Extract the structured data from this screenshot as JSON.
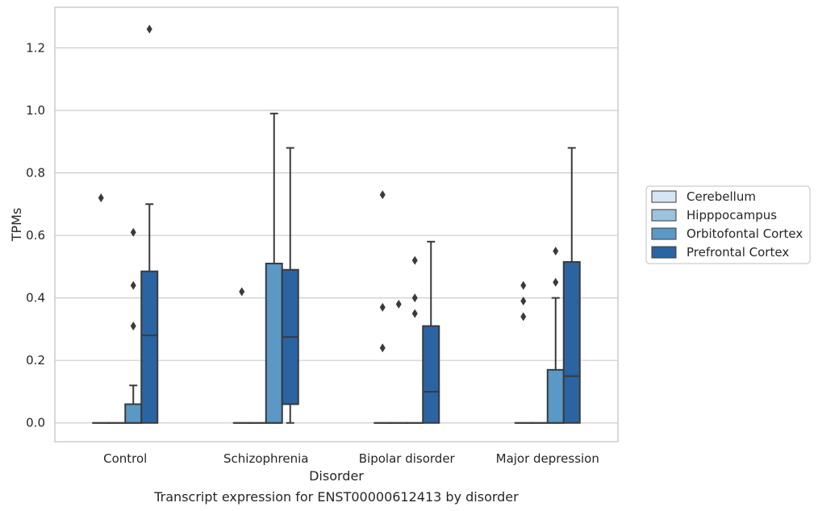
{
  "chart_data": {
    "type": "boxplot",
    "caption": "Transcript expression for ENST00000612413 by disorder",
    "xlabel": "Disorder",
    "ylabel": "TPMs",
    "ylim": [
      -0.06,
      1.33
    ],
    "yticks": [
      "0.0",
      "0.2",
      "0.4",
      "0.6",
      "0.8",
      "1.0",
      "1.2"
    ],
    "grid": "horizontal",
    "legend_position": "right",
    "categories": [
      "Control",
      "Schizophrenia",
      "Bipolar disorder",
      "Major depression"
    ],
    "series": [
      {
        "name": "Cerebellum",
        "color": "#d4e4f2",
        "boxes": [
          {
            "min": 0,
            "q1": 0,
            "median": 0,
            "q3": 0,
            "max": 0,
            "outliers": [
              0.72
            ]
          },
          {
            "min": 0,
            "q1": 0,
            "median": 0,
            "q3": 0,
            "max": 0,
            "outliers": [
              0.42
            ]
          },
          {
            "min": 0,
            "q1": 0,
            "median": 0,
            "q3": 0,
            "max": 0,
            "outliers": [
              0.73,
              0.37,
              0.24
            ]
          },
          {
            "min": 0,
            "q1": 0,
            "median": 0,
            "q3": 0,
            "max": 0,
            "outliers": [
              0.44,
              0.39,
              0.34
            ]
          }
        ]
      },
      {
        "name": "Hipppocampus",
        "color": "#9bc3de",
        "boxes": [
          {
            "min": 0,
            "q1": 0,
            "median": 0,
            "q3": 0,
            "max": 0,
            "outliers": []
          },
          {
            "min": 0,
            "q1": 0,
            "median": 0,
            "q3": 0,
            "max": 0,
            "outliers": []
          },
          {
            "min": 0,
            "q1": 0,
            "median": 0,
            "q3": 0,
            "max": 0,
            "outliers": [
              0.38
            ]
          },
          {
            "min": 0,
            "q1": 0,
            "median": 0,
            "q3": 0,
            "max": 0,
            "outliers": []
          }
        ]
      },
      {
        "name": "Orbitofontal Cortex",
        "color": "#5a98c6",
        "boxes": [
          {
            "min": 0,
            "q1": 0,
            "median": 0,
            "q3": 0.06,
            "max": 0.12,
            "outliers": [
              0.61,
              0.44,
              0.31
            ]
          },
          {
            "min": 0,
            "q1": 0,
            "median": 0,
            "q3": 0.51,
            "max": 0.99,
            "outliers": []
          },
          {
            "min": 0,
            "q1": 0,
            "median": 0,
            "q3": 0,
            "max": 0,
            "outliers": [
              0.52,
              0.4,
              0.35
            ]
          },
          {
            "min": 0,
            "q1": 0,
            "median": 0,
            "q3": 0.17,
            "max": 0.4,
            "outliers": [
              0.55,
              0.45
            ]
          }
        ]
      },
      {
        "name": "Prefrontal Cortex",
        "color": "#2a64a2",
        "boxes": [
          {
            "min": 0,
            "q1": 0,
            "median": 0.28,
            "q3": 0.485,
            "max": 0.7,
            "outliers": [
              1.26
            ]
          },
          {
            "min": 0,
            "q1": 0.06,
            "median": 0.275,
            "q3": 0.49,
            "max": 0.88,
            "outliers": []
          },
          {
            "min": 0,
            "q1": 0,
            "median": 0.1,
            "q3": 0.31,
            "max": 0.58,
            "outliers": []
          },
          {
            "min": 0,
            "q1": 0,
            "median": 0.15,
            "q3": 0.515,
            "max": 0.88,
            "outliers": []
          }
        ]
      }
    ]
  }
}
